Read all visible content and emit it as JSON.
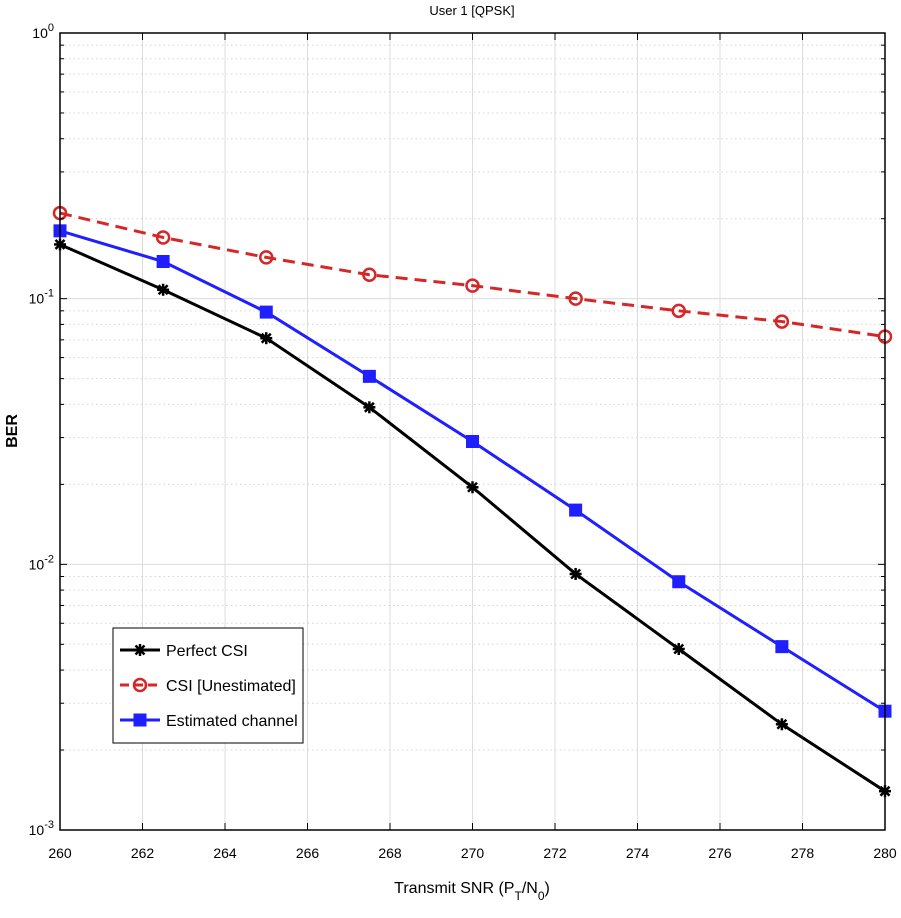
{
  "chart_data": {
    "type": "line",
    "title": "User 1 [QPSK]",
    "xlabel": "Transmit SNR",
    "xlabel_parts": {
      "prefix": "Transmit SNR (P",
      "sub1": "T",
      "mid": "/N",
      "sub2": "0",
      "suffix": ")"
    },
    "ylabel": "BER",
    "y_scale": "log",
    "xlim": [
      260,
      280
    ],
    "ylim": [
      0.001,
      1
    ],
    "x_ticks": [
      260,
      262,
      264,
      266,
      268,
      270,
      272,
      274,
      276,
      278,
      280
    ],
    "y_ticks": [
      {
        "value": 1,
        "base": "10",
        "exp": "0"
      },
      {
        "value": 0.1,
        "base": "10",
        "exp": "-1"
      },
      {
        "value": 0.01,
        "base": "10",
        "exp": "-2"
      },
      {
        "value": 0.001,
        "base": "10",
        "exp": "-3"
      }
    ],
    "grid": true,
    "legend_position": "lower-left",
    "x": [
      260,
      262.5,
      265,
      267.5,
      270,
      272.5,
      275,
      277.5,
      280
    ],
    "series": [
      {
        "name": "Perfect CSI",
        "color": "#000000",
        "line": "solid",
        "marker": "star",
        "values": [
          0.16,
          0.108,
          0.071,
          0.039,
          0.0195,
          0.0092,
          0.0048,
          0.0025,
          0.0014
        ]
      },
      {
        "name": "CSI [Unestimated]",
        "color": "#d62728",
        "line": "dashed",
        "marker": "circle",
        "values": [
          0.21,
          0.17,
          0.143,
          0.123,
          0.112,
          0.1,
          0.09,
          0.082,
          0.072
        ]
      },
      {
        "name": "Estimated channel",
        "color": "#1f1fff",
        "line": "solid",
        "marker": "square",
        "values": [
          0.18,
          0.138,
          0.089,
          0.051,
          0.029,
          0.016,
          0.0086,
          0.0049,
          0.0028
        ]
      }
    ]
  }
}
